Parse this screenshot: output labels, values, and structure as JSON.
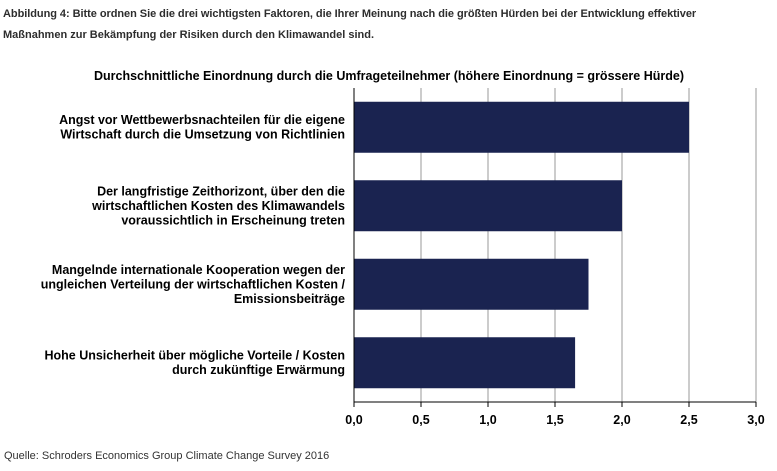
{
  "figure": {
    "caption_line1": "Abbildung 4: Bitte ordnen Sie die drei wichtigsten Faktoren, die Ihrer Meinung nach die größten Hürden bei der Entwicklung effektiver",
    "caption_line2": "Maßnahmen zur Bekämpfung der Risiken durch den Klimawandel sind.",
    "source": "Quelle: Schroders Economics Group Climate Change Survey 2016"
  },
  "colors": {
    "bar": "#1a2350",
    "grid": "#9a9a9a",
    "axis": "#000000",
    "text": "#000000"
  },
  "chart_data": {
    "type": "bar",
    "orientation": "horizontal",
    "title": "Durchschnittliche Einordnung durch die Umfrageteilnehmer (höhere Einordnung = grössere Hürde)",
    "categories": [
      [
        "Angst vor Wettbewerbsnachteilen für die eigene",
        "Wirtschaft durch die Umsetzung von Richtlinien"
      ],
      [
        "Der langfristige Zeithorizont, über den die",
        "wirtschaftlichen Kosten des Klimawandels",
        "voraussichtlich in Erscheinung treten"
      ],
      [
        "Mangelnde internationale Kooperation wegen der",
        "ungleichen Verteilung der wirtschaftlichen Kosten /",
        "Emissionsbeiträge"
      ],
      [
        "Hohe Unsicherheit über mögliche Vorteile / Kosten",
        "durch zukünftige Erwärmung"
      ]
    ],
    "values": [
      2.5,
      2.0,
      1.75,
      1.65
    ],
    "xlim": [
      0,
      3.0
    ],
    "xticks": [
      "0,0",
      "0,5",
      "1,0",
      "1,5",
      "2,0",
      "2,5",
      "3,0"
    ],
    "xtick_values": [
      0,
      0.5,
      1.0,
      1.5,
      2.0,
      2.5,
      3.0
    ],
    "grid": "vertical"
  }
}
